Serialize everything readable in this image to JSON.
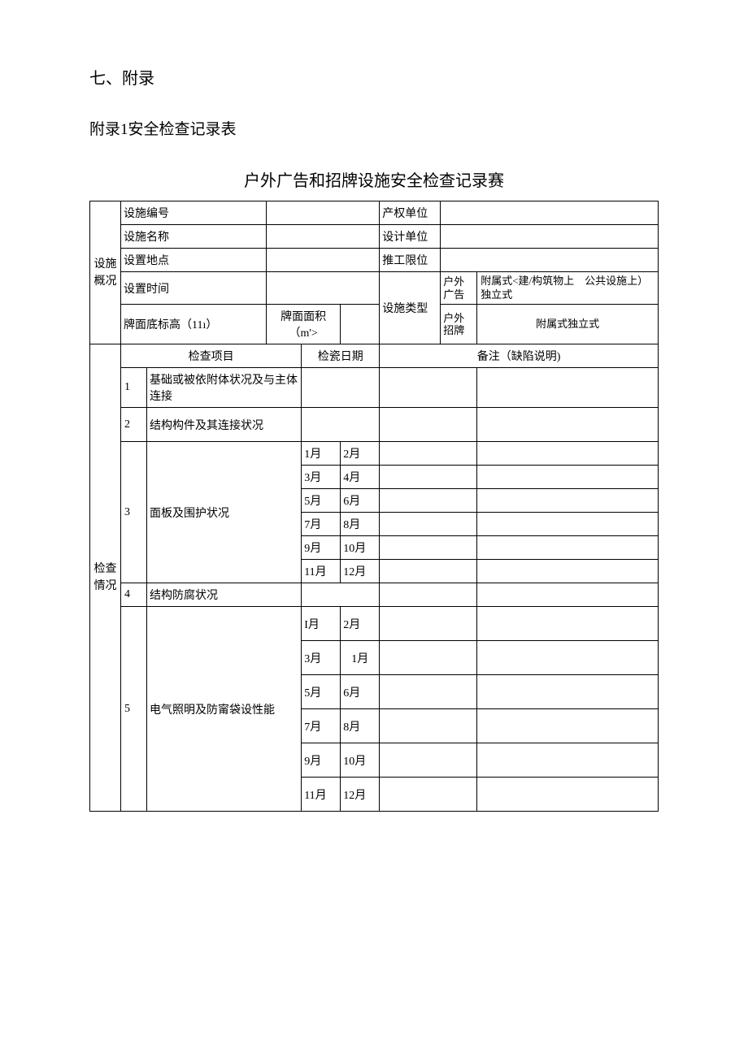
{
  "headings": {
    "section": "七、附录",
    "subsection": "附录1安全检查记录表",
    "table_title": "户外广告和招牌设施安全检查记录赛"
  },
  "overview": {
    "section_label": "设施\n概况",
    "rows": {
      "facility_no": "设施编号",
      "owner": "产权单位",
      "facility_name": "设施名称",
      "design_unit": "设计单位",
      "location": "设置地点",
      "construction": "推工限位",
      "setup_time": "设置时间",
      "facility_type": "设施类型",
      "board_height": "牌面底标高（11ı）",
      "board_area": "牌面面积（m'>"
    },
    "type_opts": {
      "outdoor_ad": "户外广告",
      "outdoor_ad_desc": "附属式<建/构筑物上　公共设施上）独立式",
      "outdoor_sign": "户外招牌",
      "outdoor_sign_desc": "附属式独立式"
    }
  },
  "inspection": {
    "section_label": "检查\n情况",
    "headers": {
      "item": "检查项目",
      "date": "检瓷日期",
      "remark": "备注（缺陷说明)"
    },
    "items": {
      "i1": {
        "num": "1",
        "name": "基础或被依附体状况及与主体连接"
      },
      "i2": {
        "num": "2",
        "name": "结构构件及其连接状况"
      },
      "i3": {
        "num": "3",
        "name": "面板及围护状况"
      },
      "i4": {
        "num": "4",
        "name": "结构防腐状况"
      },
      "i5": {
        "num": "5",
        "name": "电气照明及防甯袋设性能"
      }
    },
    "months3": {
      "m1": "1月",
      "m2": "2月",
      "m3": "3月",
      "m4": "4月",
      "m5": "5月",
      "m6": "6月",
      "m7": "7月",
      "m8": "8月",
      "m9": "9月",
      "m10": "10月",
      "m11": "11月",
      "m12": "12月"
    },
    "months5": {
      "m1": "I月",
      "m2": "2月",
      "m3": "3月",
      "m4": "1月",
      "m5": "5月",
      "m6": "6月",
      "m7": "7月",
      "m8": "8月",
      "m9": "9月",
      "m10": "10月",
      "m11": "11月",
      "m12": "12月"
    }
  }
}
